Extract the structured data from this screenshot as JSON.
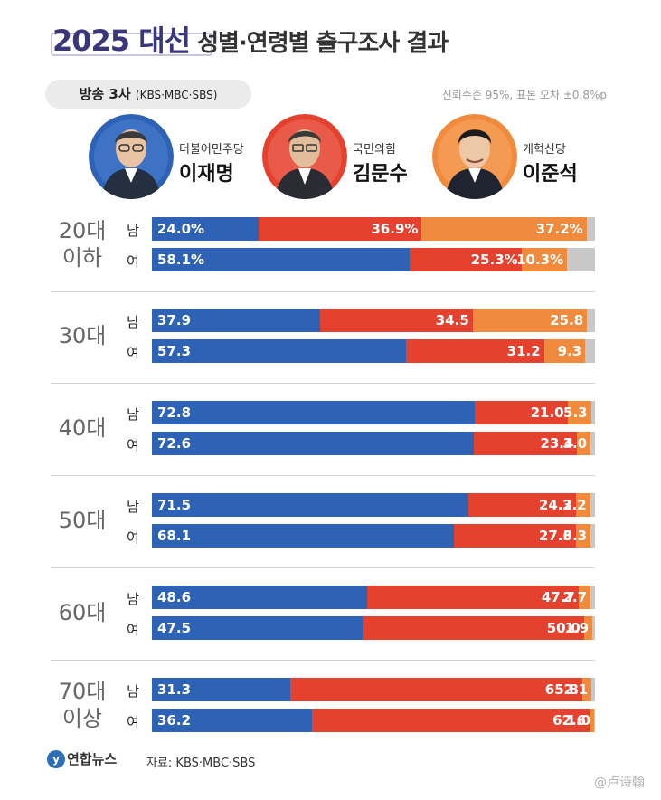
{
  "header": {
    "title_main": "2025 대선",
    "title_sub": "성별·연령별 출구조사 결과",
    "source_pill_main": "방송 3사",
    "source_pill_sub": "(KBS·MBC·SBS)",
    "confidence": "신뢰수준 95%, 표본 오차 ±0.8%p"
  },
  "candidates": [
    {
      "party": "더불어민주당",
      "name": "이재명",
      "color": "#2e62b5"
    },
    {
      "party": "국민의힘",
      "name": "김문수",
      "color": "#e5412f"
    },
    {
      "party": "개혁신당",
      "name": "이준석",
      "color": "#f08a3c"
    }
  ],
  "colors": {
    "other": "#c8c8c8"
  },
  "chart_data": {
    "type": "bar",
    "orientation": "horizontal-stacked-100",
    "series_names": [
      "이재명",
      "김문수",
      "이준석"
    ],
    "groups": [
      {
        "age_line1": "20대",
        "age_line2": "이하",
        "rows": [
          {
            "sex": "남",
            "values": [
              24.0,
              36.9,
              37.2
            ],
            "labels": [
              "24.0%",
              "36.9%",
              "37.2%"
            ]
          },
          {
            "sex": "여",
            "values": [
              58.1,
              25.3,
              10.3
            ],
            "labels": [
              "58.1%",
              "25.3%",
              "10.3%"
            ]
          }
        ]
      },
      {
        "age_line1": "30대",
        "age_line2": "",
        "rows": [
          {
            "sex": "남",
            "values": [
              37.9,
              34.5,
              25.8
            ],
            "labels": [
              "37.9",
              "34.5",
              "25.8"
            ]
          },
          {
            "sex": "여",
            "values": [
              57.3,
              31.2,
              9.3
            ],
            "labels": [
              "57.3",
              "31.2",
              "9.3"
            ]
          }
        ]
      },
      {
        "age_line1": "40대",
        "age_line2": "",
        "rows": [
          {
            "sex": "남",
            "values": [
              72.8,
              21.0,
              5.3
            ],
            "labels": [
              "72.8",
              "21.0",
              "5.3"
            ]
          },
          {
            "sex": "여",
            "values": [
              72.6,
              23.4,
              3.0
            ],
            "labels": [
              "72.6",
              "23.4",
              "3.0"
            ]
          }
        ]
      },
      {
        "age_line1": "50대",
        "age_line2": "",
        "rows": [
          {
            "sex": "남",
            "values": [
              71.5,
              24.2,
              3.2
            ],
            "labels": [
              "71.5",
              "24.2",
              "3.2"
            ]
          },
          {
            "sex": "여",
            "values": [
              68.1,
              27.6,
              3.3
            ],
            "labels": [
              "68.1",
              "27.6",
              "3.3"
            ]
          }
        ]
      },
      {
        "age_line1": "60대",
        "age_line2": "",
        "rows": [
          {
            "sex": "남",
            "values": [
              48.6,
              47.7,
              2.7
            ],
            "labels": [
              "48.6",
              "47.7",
              "2.7"
            ]
          },
          {
            "sex": "여",
            "values": [
              47.5,
              50.0,
              1.9
            ],
            "labels": [
              "47.5",
              "50.0",
              "1.9"
            ]
          }
        ]
      },
      {
        "age_line1": "70대",
        "age_line2": "이상",
        "rows": [
          {
            "sex": "남",
            "values": [
              31.3,
              65.8,
              2.1
            ],
            "labels": [
              "31.3",
              "65.8",
              "2.1"
            ]
          },
          {
            "sex": "여",
            "values": [
              36.2,
              62.6,
              1.0
            ],
            "labels": [
              "36.2",
              "62.6",
              "1.0"
            ]
          }
        ]
      }
    ]
  },
  "footer": {
    "logo_mark": "y",
    "logo_text": "연합뉴스",
    "source": "자료: KBS·MBC·SBS",
    "watermark": "@卢诗翰"
  }
}
